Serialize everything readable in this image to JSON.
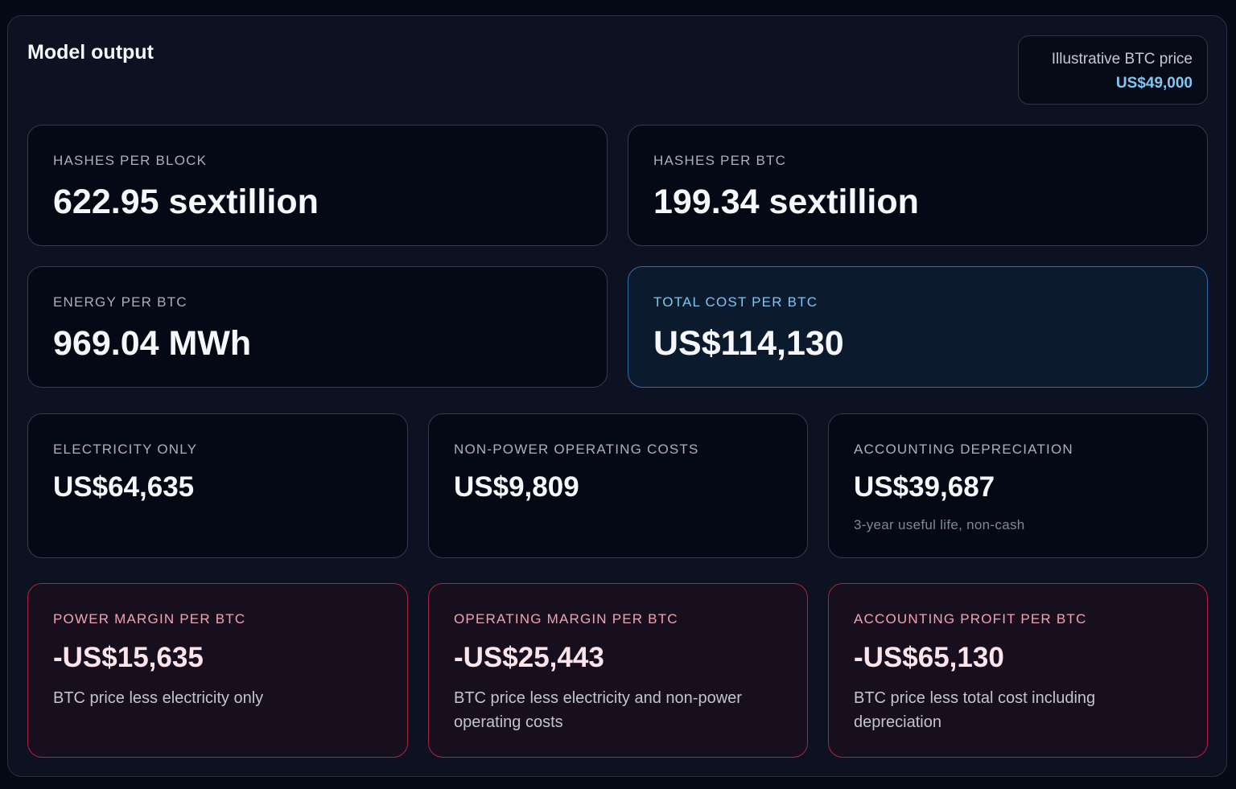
{
  "header": {
    "title": "Model output"
  },
  "price": {
    "label": "Illustrative BTC price",
    "value": "US$49,000"
  },
  "cards": [
    {
      "label": "HASHES PER BLOCK",
      "value": "622.95 sextillion"
    },
    {
      "label": "HASHES PER BTC",
      "value": "199.34 sextillion"
    },
    {
      "label": "ENERGY PER BTC",
      "value": "969.04 MWh"
    },
    {
      "label": "TOTAL COST PER BTC",
      "value": "US$114,130"
    },
    {
      "label": "ELECTRICITY ONLY",
      "value": "US$64,635"
    },
    {
      "label": "NON-POWER OPERATING COSTS",
      "value": "US$9,809"
    },
    {
      "label": "ACCOUNTING DEPRECIATION",
      "value": "US$39,687",
      "note": "3-year useful life, non-cash"
    },
    {
      "label": "POWER MARGIN PER BTC",
      "value": "-US$15,635",
      "note": "BTC price less electricity only"
    },
    {
      "label": "OPERATING MARGIN PER BTC",
      "value": "-US$25,443",
      "note": "BTC price less electricity and non-power operating costs"
    },
    {
      "label": "ACCOUNTING PROFIT PER BTC",
      "value": "-US$65,130",
      "note": "BTC price less total cost including depreciation"
    }
  ]
}
